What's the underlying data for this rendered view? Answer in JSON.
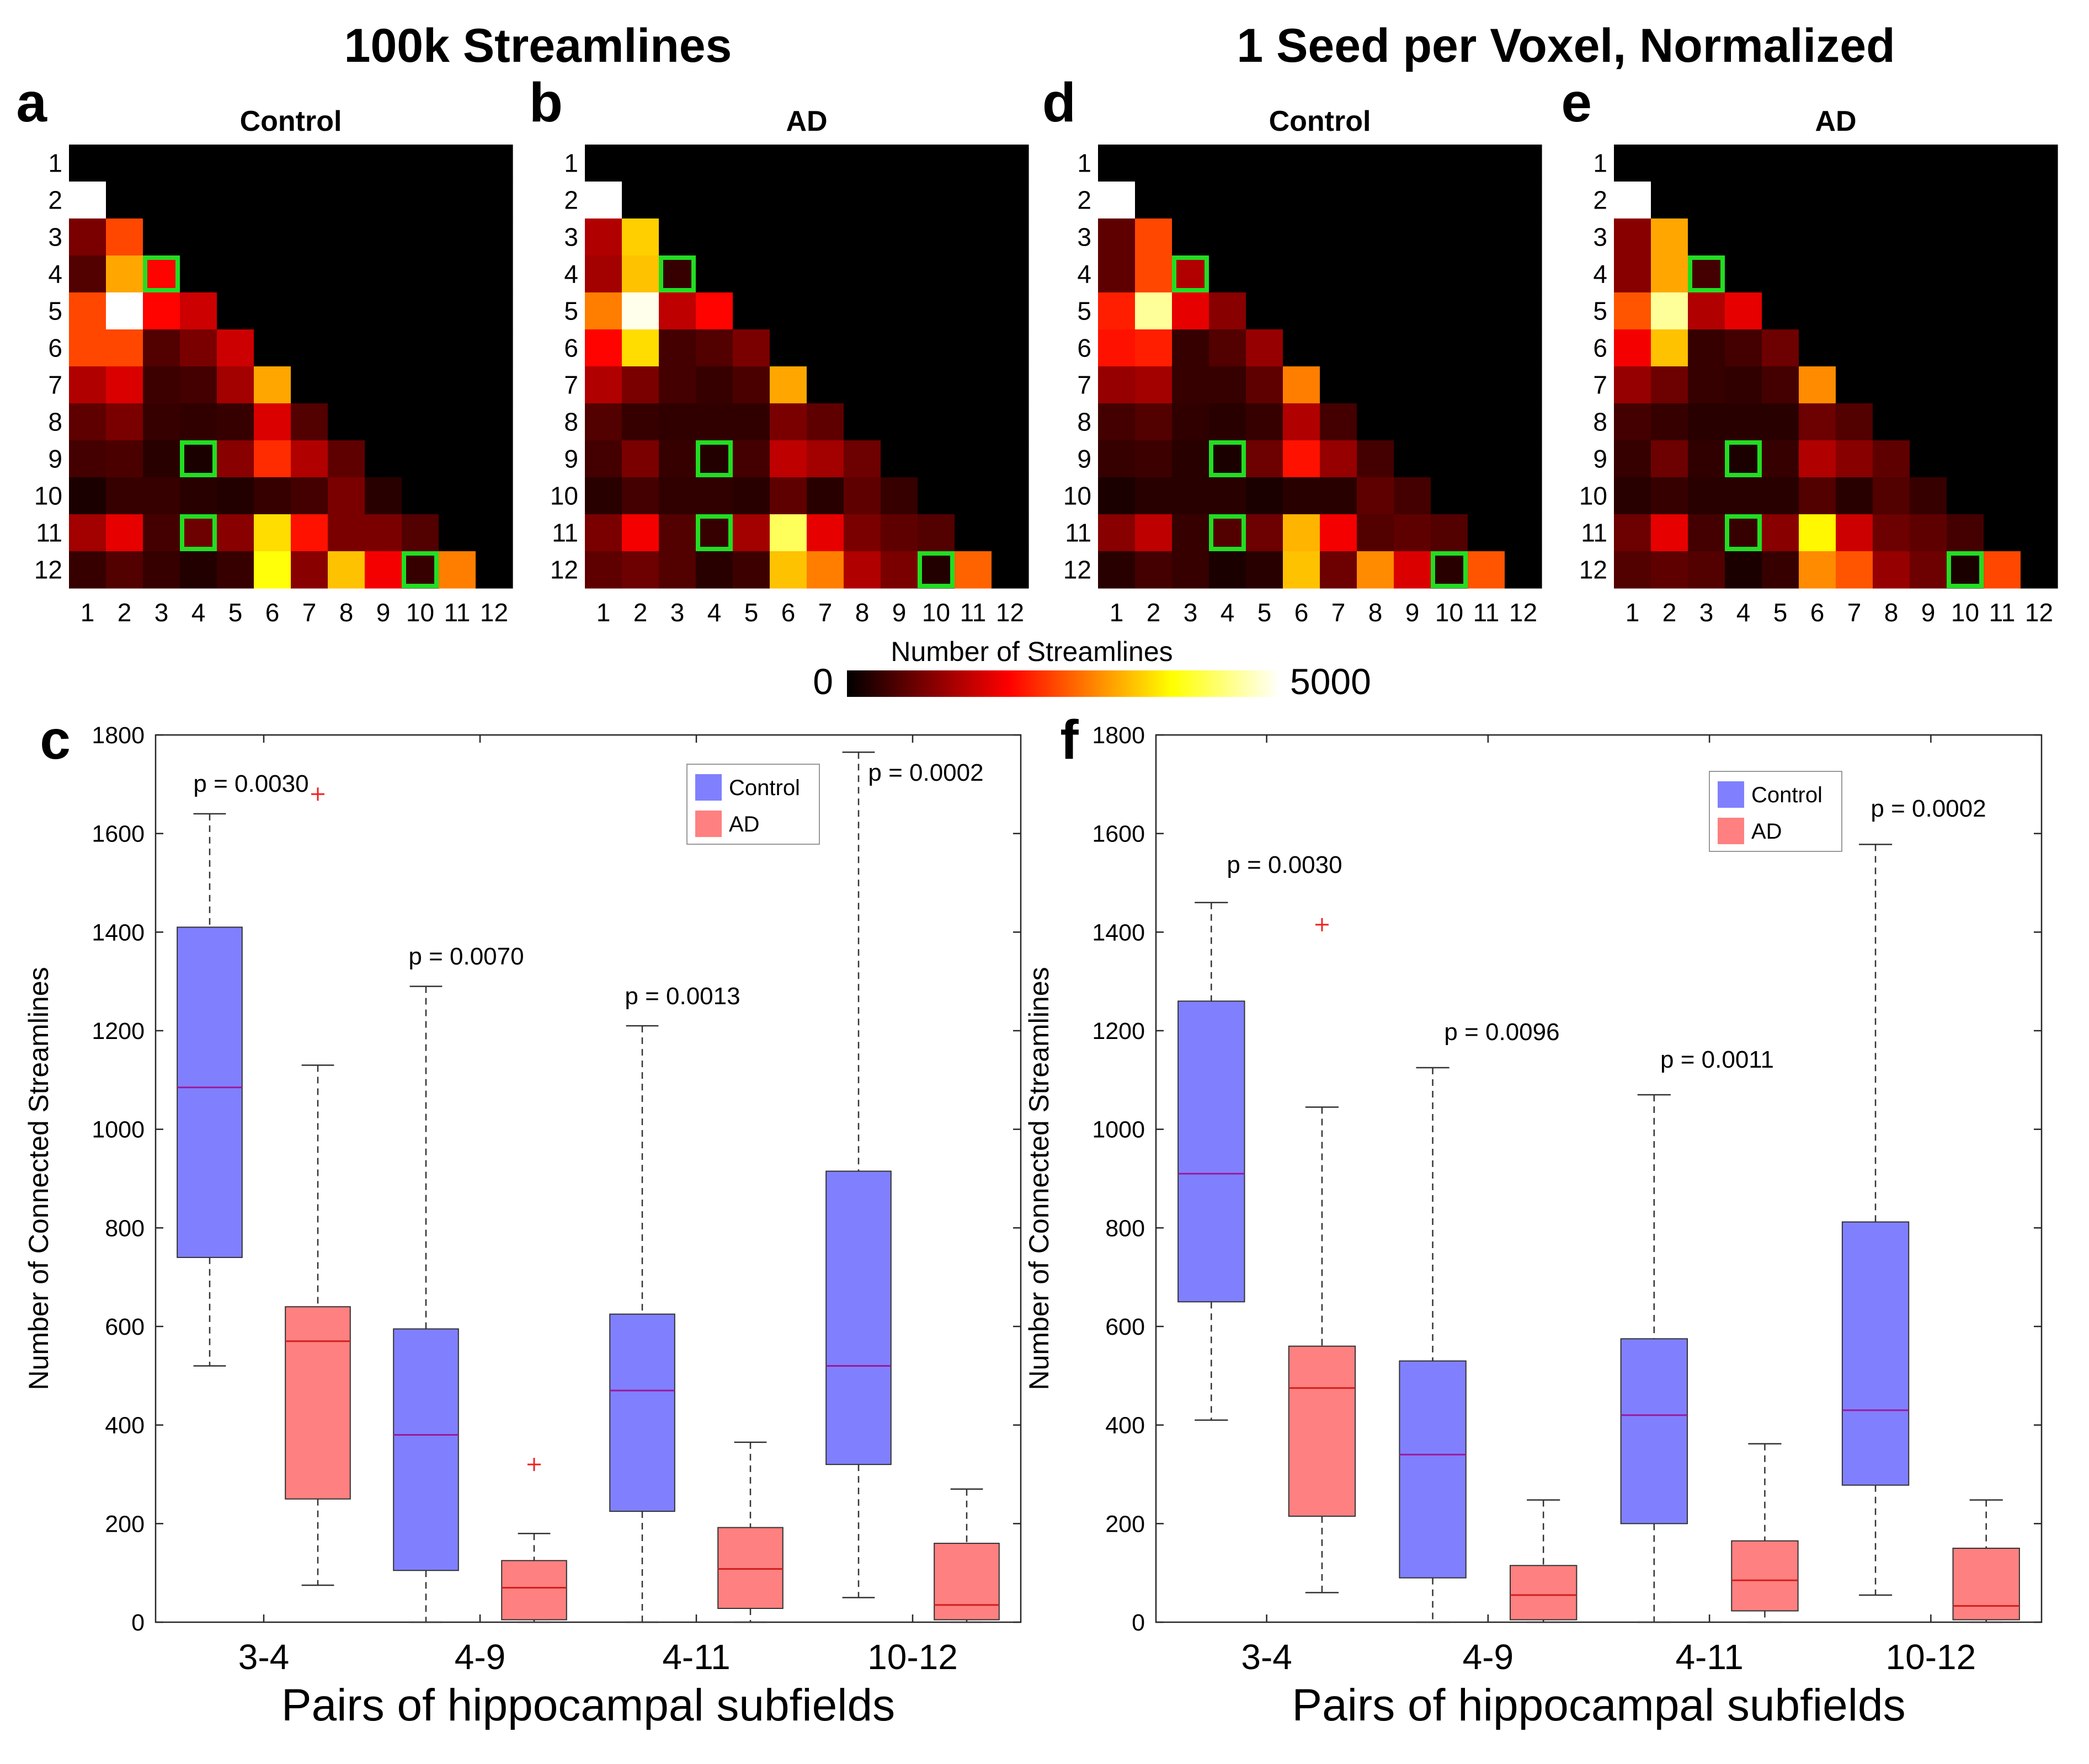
{
  "figure": {
    "group_titles": [
      "100k Streamlines",
      "1 Seed per Voxel, Normalized"
    ],
    "colorbar": {
      "label": "Number of Streamlines",
      "min_label": "0",
      "max_label": "5000",
      "min": 0,
      "max": 5000
    },
    "colors": {
      "control": "#8080ff",
      "ad": "#ff8080",
      "highlight": "#22dd22",
      "median_control": "#9a1a9a",
      "median_ad": "#d02020",
      "outlier": "#ee2222"
    }
  },
  "chart_data": [
    {
      "type": "heatmap",
      "panel": "a",
      "title": "Control",
      "ticks": [
        "1",
        "2",
        "3",
        "4",
        "5",
        "6",
        "7",
        "8",
        "9",
        "10",
        "11",
        "12"
      ],
      "range": [
        0,
        5000
      ],
      "highlight_cells": [
        [
          4,
          3
        ],
        [
          9,
          4
        ],
        [
          11,
          4
        ],
        [
          12,
          10
        ]
      ],
      "values": [
        [
          0,
          0,
          0,
          0,
          0,
          0,
          0,
          0,
          0,
          0,
          0,
          0
        ],
        [
          5000,
          0,
          0,
          0,
          0,
          0,
          0,
          0,
          0,
          0,
          0,
          0
        ],
        [
          900,
          2400,
          0,
          0,
          0,
          0,
          0,
          0,
          0,
          0,
          0,
          0
        ],
        [
          600,
          3100,
          1900,
          0,
          0,
          0,
          0,
          0,
          0,
          0,
          0,
          0
        ],
        [
          2400,
          5000,
          1900,
          1500,
          0,
          0,
          0,
          0,
          0,
          0,
          0,
          0
        ],
        [
          2400,
          2400,
          600,
          900,
          1500,
          0,
          0,
          0,
          0,
          0,
          0,
          0
        ],
        [
          1300,
          1600,
          450,
          500,
          1200,
          3100,
          0,
          0,
          0,
          0,
          0,
          0
        ],
        [
          700,
          900,
          400,
          350,
          400,
          1600,
          600,
          0,
          0,
          0,
          0,
          0
        ],
        [
          500,
          550,
          300,
          200,
          1000,
          2200,
          1300,
          700,
          0,
          0,
          0,
          0
        ],
        [
          200,
          400,
          400,
          300,
          250,
          400,
          500,
          900,
          300,
          0,
          0,
          0
        ],
        [
          1200,
          1700,
          500,
          800,
          1000,
          3500,
          2000,
          900,
          900,
          600,
          0,
          0
        ],
        [
          400,
          600,
          400,
          250,
          400,
          3800,
          1000,
          3300,
          1800,
          400,
          2800,
          0
        ]
      ]
    },
    {
      "type": "heatmap",
      "panel": "b",
      "title": "AD",
      "ticks": [
        "1",
        "2",
        "3",
        "4",
        "5",
        "6",
        "7",
        "8",
        "9",
        "10",
        "11",
        "12"
      ],
      "range": [
        0,
        5000
      ],
      "highlight_cells": [
        [
          4,
          3
        ],
        [
          9,
          4
        ],
        [
          11,
          4
        ],
        [
          12,
          10
        ]
      ],
      "values": [
        [
          0,
          0,
          0,
          0,
          0,
          0,
          0,
          0,
          0,
          0,
          0,
          0
        ],
        [
          5000,
          0,
          0,
          0,
          0,
          0,
          0,
          0,
          0,
          0,
          0,
          0
        ],
        [
          1300,
          3400,
          0,
          0,
          0,
          0,
          0,
          0,
          0,
          0,
          0,
          0
        ],
        [
          1200,
          3300,
          400,
          0,
          0,
          0,
          0,
          0,
          0,
          0,
          0,
          0
        ],
        [
          2800,
          4900,
          1400,
          1900,
          0,
          0,
          0,
          0,
          0,
          0,
          0,
          0
        ],
        [
          1900,
          3500,
          500,
          600,
          900,
          0,
          0,
          0,
          0,
          0,
          0,
          0
        ],
        [
          1300,
          900,
          500,
          400,
          550,
          3100,
          0,
          0,
          0,
          0,
          0,
          0
        ],
        [
          600,
          400,
          350,
          350,
          350,
          900,
          700,
          0,
          0,
          0,
          0,
          0
        ],
        [
          500,
          900,
          400,
          250,
          500,
          1400,
          1200,
          800,
          0,
          0,
          0,
          0
        ],
        [
          300,
          500,
          350,
          350,
          300,
          700,
          300,
          700,
          400,
          0,
          0,
          0
        ],
        [
          900,
          1800,
          600,
          400,
          1200,
          4200,
          1700,
          900,
          700,
          600,
          0,
          0
        ],
        [
          700,
          800,
          600,
          300,
          450,
          3300,
          2800,
          1300,
          900,
          250,
          2600,
          0
        ]
      ]
    },
    {
      "type": "heatmap",
      "panel": "d",
      "title": "Control",
      "ticks": [
        "1",
        "2",
        "3",
        "4",
        "5",
        "6",
        "7",
        "8",
        "9",
        "10",
        "11",
        "12"
      ],
      "range": [
        0,
        5000
      ],
      "highlight_cells": [
        [
          4,
          3
        ],
        [
          9,
          4
        ],
        [
          11,
          4
        ],
        [
          12,
          10
        ]
      ],
      "values": [
        [
          0,
          0,
          0,
          0,
          0,
          0,
          0,
          0,
          0,
          0,
          0,
          0
        ],
        [
          5000,
          0,
          0,
          0,
          0,
          0,
          0,
          0,
          0,
          0,
          0,
          0
        ],
        [
          700,
          2400,
          0,
          0,
          0,
          0,
          0,
          0,
          0,
          0,
          0,
          0
        ],
        [
          700,
          2400,
          1300,
          0,
          0,
          0,
          0,
          0,
          0,
          0,
          0,
          0
        ],
        [
          2100,
          4500,
          1700,
          1000,
          0,
          0,
          0,
          0,
          0,
          0,
          0,
          0
        ],
        [
          2000,
          2100,
          400,
          600,
          1100,
          0,
          0,
          0,
          0,
          0,
          0,
          0
        ],
        [
          1100,
          1200,
          400,
          400,
          700,
          2800,
          0,
          0,
          0,
          0,
          0,
          0
        ],
        [
          500,
          600,
          350,
          300,
          400,
          1300,
          500,
          0,
          0,
          0,
          0,
          0
        ],
        [
          400,
          450,
          300,
          200,
          800,
          2000,
          1100,
          500,
          0,
          0,
          0,
          0
        ],
        [
          200,
          300,
          300,
          300,
          200,
          300,
          300,
          700,
          500,
          0,
          0,
          0
        ],
        [
          1000,
          1400,
          400,
          600,
          800,
          3200,
          1800,
          600,
          700,
          600,
          0,
          0
        ],
        [
          300,
          500,
          400,
          200,
          300,
          3300,
          800,
          2900,
          1600,
          300,
          2500,
          0
        ]
      ]
    },
    {
      "type": "heatmap",
      "panel": "e",
      "title": "AD",
      "ticks": [
        "1",
        "2",
        "3",
        "4",
        "5",
        "6",
        "7",
        "8",
        "9",
        "10",
        "11",
        "12"
      ],
      "range": [
        0,
        5000
      ],
      "highlight_cells": [
        [
          4,
          3
        ],
        [
          9,
          4
        ],
        [
          11,
          4
        ],
        [
          12,
          10
        ]
      ],
      "values": [
        [
          0,
          0,
          0,
          0,
          0,
          0,
          0,
          0,
          0,
          0,
          0,
          0
        ],
        [
          5000,
          0,
          0,
          0,
          0,
          0,
          0,
          0,
          0,
          0,
          0,
          0
        ],
        [
          1000,
          3100,
          0,
          0,
          0,
          0,
          0,
          0,
          0,
          0,
          0,
          0
        ],
        [
          1000,
          3100,
          500,
          0,
          0,
          0,
          0,
          0,
          0,
          0,
          0,
          0
        ],
        [
          2500,
          4500,
          1300,
          1700,
          0,
          0,
          0,
          0,
          0,
          0,
          0,
          0
        ],
        [
          1800,
          3300,
          400,
          500,
          800,
          0,
          0,
          0,
          0,
          0,
          0,
          0
        ],
        [
          1100,
          800,
          400,
          350,
          500,
          2900,
          0,
          0,
          0,
          0,
          0,
          0
        ],
        [
          500,
          400,
          300,
          300,
          300,
          800,
          600,
          0,
          0,
          0,
          0,
          0
        ],
        [
          400,
          800,
          350,
          200,
          400,
          1300,
          1000,
          700,
          0,
          0,
          0,
          0
        ],
        [
          300,
          400,
          300,
          300,
          300,
          600,
          300,
          600,
          400,
          0,
          0,
          0
        ],
        [
          800,
          1700,
          500,
          400,
          1000,
          3700,
          1500,
          800,
          700,
          500,
          0,
          0
        ],
        [
          600,
          700,
          600,
          200,
          400,
          2900,
          2500,
          1100,
          800,
          200,
          2400,
          0
        ]
      ]
    },
    {
      "type": "box",
      "panel": "c",
      "xlabel": "Pairs of hippocampal subfields",
      "ylabel": "Number of Connected Streamlines",
      "ylim": [
        0,
        1800
      ],
      "yticks": [
        0,
        200,
        400,
        600,
        800,
        1000,
        1200,
        1400,
        1600,
        1800
      ],
      "categories": [
        "3-4",
        "4-9",
        "4-11",
        "10-12"
      ],
      "legend": [
        "Control",
        "AD"
      ],
      "pvalues": [
        "p = 0.0030",
        "p = 0.0070",
        "p = 0.0013",
        "p = 0.0002"
      ],
      "series": [
        {
          "name": "Control",
          "boxes": [
            {
              "min": 520,
              "q1": 740,
              "median": 1085,
              "q3": 1410,
              "max": 1640,
              "outliers": []
            },
            {
              "min": 0,
              "q1": 105,
              "median": 380,
              "q3": 595,
              "max": 1290,
              "outliers": []
            },
            {
              "min": 0,
              "q1": 225,
              "median": 470,
              "q3": 625,
              "max": 1210,
              "outliers": []
            },
            {
              "min": 50,
              "q1": 320,
              "median": 520,
              "q3": 915,
              "max": 1765,
              "outliers": []
            }
          ]
        },
        {
          "name": "AD",
          "boxes": [
            {
              "min": 75,
              "q1": 250,
              "median": 570,
              "q3": 640,
              "max": 1130,
              "outliers": [
                1680
              ]
            },
            {
              "min": 0,
              "q1": 5,
              "median": 70,
              "q3": 125,
              "max": 180,
              "outliers": [
                320
              ]
            },
            {
              "min": 0,
              "q1": 28,
              "median": 108,
              "q3": 192,
              "max": 365,
              "outliers": []
            },
            {
              "min": 0,
              "q1": 5,
              "median": 35,
              "q3": 160,
              "max": 270,
              "outliers": []
            }
          ]
        }
      ]
    },
    {
      "type": "box",
      "panel": "f",
      "xlabel": "Pairs of hippocampal subfields",
      "ylabel": "Number of Connected Streamlines",
      "ylim": [
        0,
        1800
      ],
      "yticks": [
        0,
        200,
        400,
        600,
        800,
        1000,
        1200,
        1400,
        1600,
        1800
      ],
      "categories": [
        "3-4",
        "4-9",
        "4-11",
        "10-12"
      ],
      "legend": [
        "Control",
        "AD"
      ],
      "pvalues": [
        "p = 0.0030",
        "p = 0.0096",
        "p = 0.0011",
        "p = 0.0002"
      ],
      "series": [
        {
          "name": "Control",
          "boxes": [
            {
              "min": 410,
              "q1": 650,
              "median": 910,
              "q3": 1260,
              "max": 1460,
              "outliers": []
            },
            {
              "min": 0,
              "q1": 90,
              "median": 340,
              "q3": 530,
              "max": 1125,
              "outliers": []
            },
            {
              "min": 0,
              "q1": 200,
              "median": 420,
              "q3": 575,
              "max": 1070,
              "outliers": []
            },
            {
              "min": 55,
              "q1": 278,
              "median": 430,
              "q3": 812,
              "max": 1578,
              "outliers": []
            }
          ]
        },
        {
          "name": "AD",
          "boxes": [
            {
              "min": 60,
              "q1": 215,
              "median": 475,
              "q3": 560,
              "max": 1045,
              "outliers": [
                1415
              ]
            },
            {
              "min": 0,
              "q1": 5,
              "median": 55,
              "q3": 115,
              "max": 248,
              "outliers": []
            },
            {
              "min": 0,
              "q1": 23,
              "median": 85,
              "q3": 165,
              "max": 362,
              "outliers": []
            },
            {
              "min": 0,
              "q1": 5,
              "median": 33,
              "q3": 150,
              "max": 248,
              "outliers": []
            }
          ]
        }
      ]
    }
  ]
}
